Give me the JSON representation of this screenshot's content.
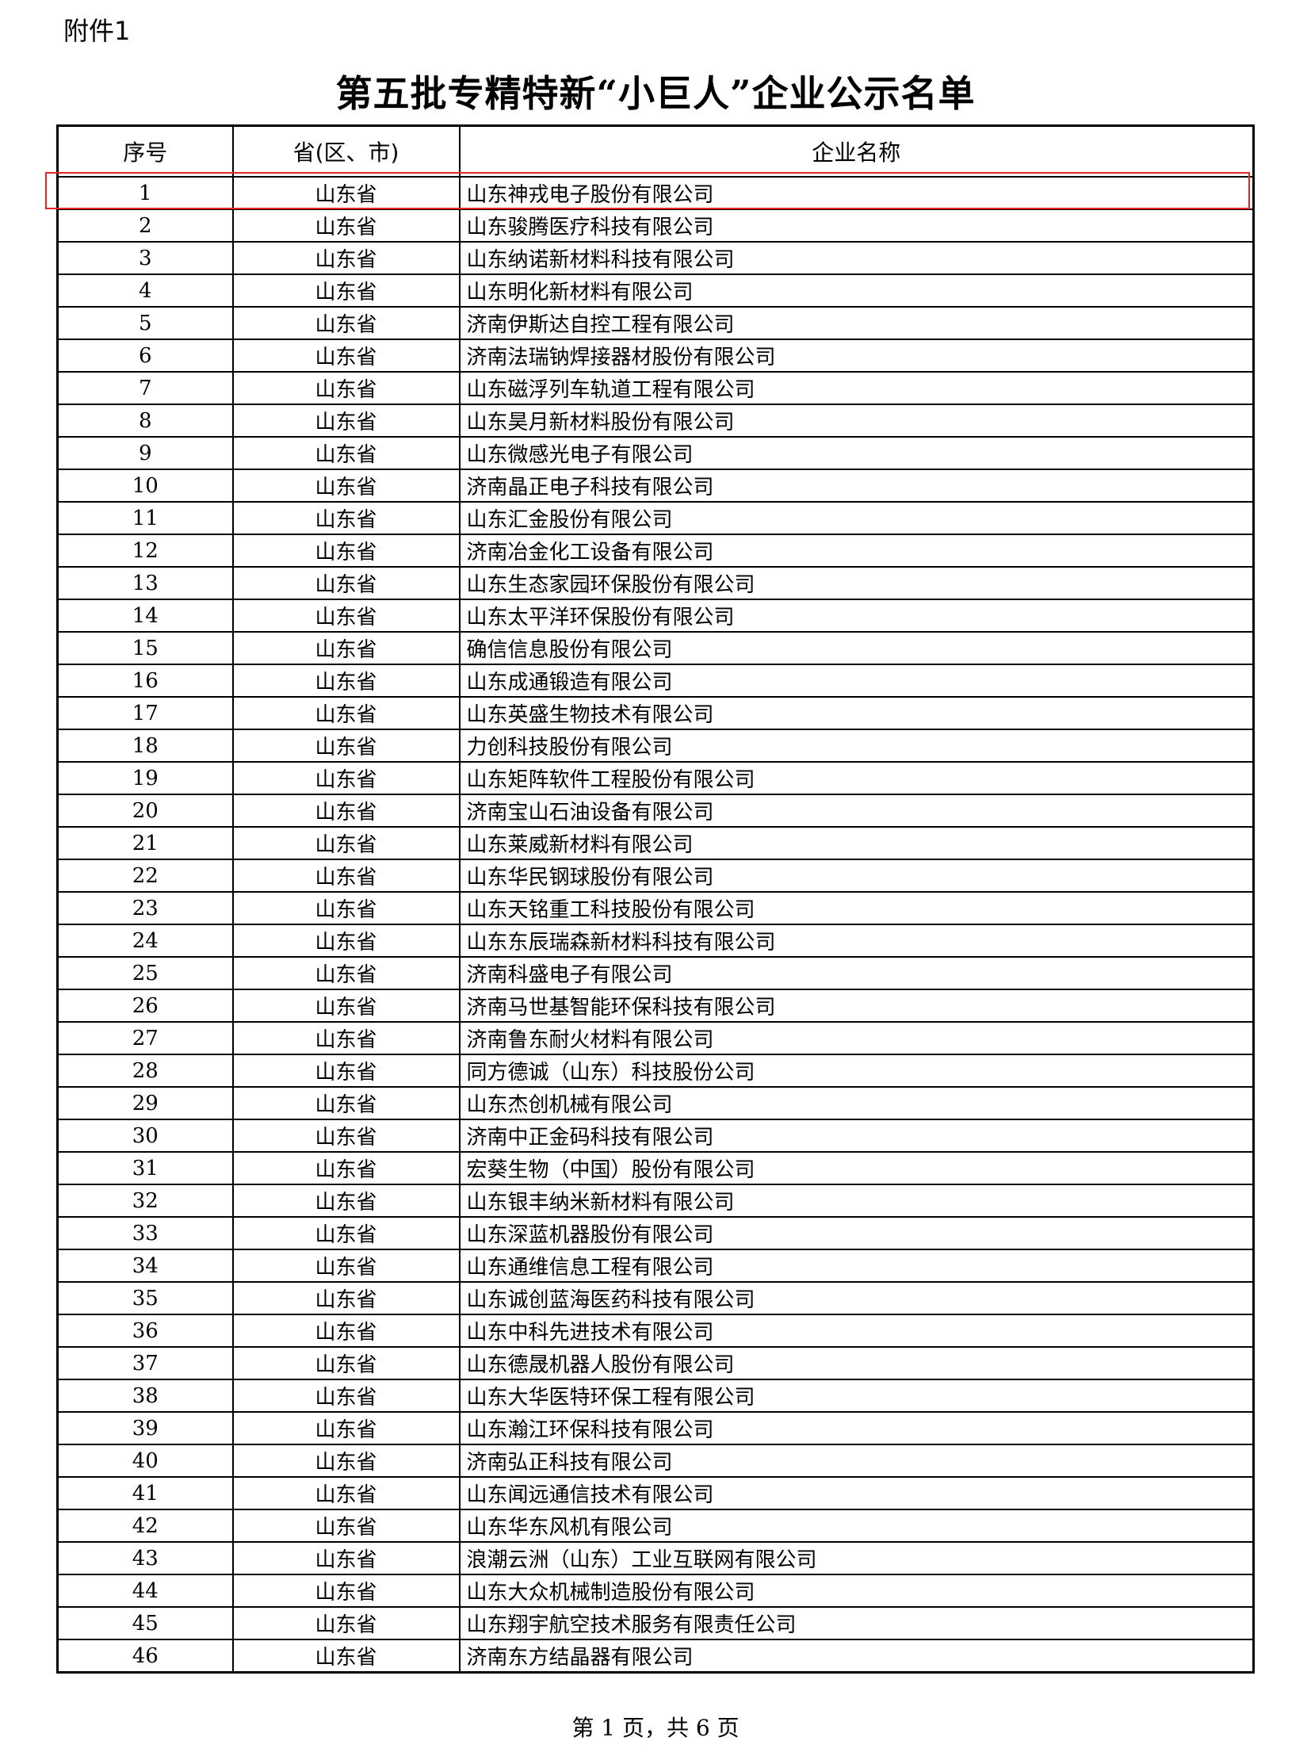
{
  "attachment_label": "附件1",
  "title": "第五批专精特新“小巨人”企业公示名单",
  "table": {
    "headers": [
      "序号",
      "省(区、市)",
      "企业名称"
    ],
    "rows": [
      [
        "1",
        "山东省",
        "山东神戎电子股份有限公司"
      ],
      [
        "2",
        "山东省",
        "山东骏腾医疗科技有限公司"
      ],
      [
        "3",
        "山东省",
        "山东纳诺新材料科技有限公司"
      ],
      [
        "4",
        "山东省",
        "山东明化新材料有限公司"
      ],
      [
        "5",
        "山东省",
        "济南伊斯达自控工程有限公司"
      ],
      [
        "6",
        "山东省",
        "济南法瑞钠焊接器材股份有限公司"
      ],
      [
        "7",
        "山东省",
        "山东磁浮列车轨道工程有限公司"
      ],
      [
        "8",
        "山东省",
        "山东昊月新材料股份有限公司"
      ],
      [
        "9",
        "山东省",
        "山东微感光电子有限公司"
      ],
      [
        "10",
        "山东省",
        "济南晶正电子科技有限公司"
      ],
      [
        "11",
        "山东省",
        "山东汇金股份有限公司"
      ],
      [
        "12",
        "山东省",
        "济南冶金化工设备有限公司"
      ],
      [
        "13",
        "山东省",
        "山东生态家园环保股份有限公司"
      ],
      [
        "14",
        "山东省",
        "山东太平洋环保股份有限公司"
      ],
      [
        "15",
        "山东省",
        "确信信息股份有限公司"
      ],
      [
        "16",
        "山东省",
        "山东成通锻造有限公司"
      ],
      [
        "17",
        "山东省",
        "山东英盛生物技术有限公司"
      ],
      [
        "18",
        "山东省",
        "力创科技股份有限公司"
      ],
      [
        "19",
        "山东省",
        "山东矩阵软件工程股份有限公司"
      ],
      [
        "20",
        "山东省",
        "济南宝山石油设备有限公司"
      ],
      [
        "21",
        "山东省",
        "山东莱威新材料有限公司"
      ],
      [
        "22",
        "山东省",
        "山东华民钢球股份有限公司"
      ],
      [
        "23",
        "山东省",
        "山东天铭重工科技股份有限公司"
      ],
      [
        "24",
        "山东省",
        "山东东辰瑞森新材料科技有限公司"
      ],
      [
        "25",
        "山东省",
        "济南科盛电子有限公司"
      ],
      [
        "26",
        "山东省",
        "济南马世基智能环保科技有限公司"
      ],
      [
        "27",
        "山东省",
        "济南鲁东耐火材料有限公司"
      ],
      [
        "28",
        "山东省",
        "同方德诚（山东）科技股份公司"
      ],
      [
        "29",
        "山东省",
        "山东杰创机械有限公司"
      ],
      [
        "30",
        "山东省",
        "济南中正金码科技有限公司"
      ],
      [
        "31",
        "山东省",
        "宏葵生物（中国）股份有限公司"
      ],
      [
        "32",
        "山东省",
        "山东银丰纳米新材料有限公司"
      ],
      [
        "33",
        "山东省",
        "山东深蓝机器股份有限公司"
      ],
      [
        "34",
        "山东省",
        "山东通维信息工程有限公司"
      ],
      [
        "35",
        "山东省",
        "山东诚创蓝海医药科技有限公司"
      ],
      [
        "36",
        "山东省",
        "山东中科先进技术有限公司"
      ],
      [
        "37",
        "山东省",
        "山东德晟机器人股份有限公司"
      ],
      [
        "38",
        "山东省",
        "山东大华医特环保工程有限公司"
      ],
      [
        "39",
        "山东省",
        "山东瀚江环保科技有限公司"
      ],
      [
        "40",
        "山东省",
        "济南弘正科技有限公司"
      ],
      [
        "41",
        "山东省",
        "山东闻远通信技术有限公司"
      ],
      [
        "42",
        "山东省",
        "山东华东风机有限公司"
      ],
      [
        "43",
        "山东省",
        "浪潮云洲（山东）工业互联网有限公司"
      ],
      [
        "44",
        "山东省",
        "山东大众机械制造股份有限公司"
      ],
      [
        "45",
        "山东省",
        "山东翔宇航空技术服务有限责任公司"
      ],
      [
        "46",
        "山东省",
        "济南东方结晶器有限公司"
      ]
    ],
    "highlighted_row": 1,
    "highlight_color": "#e8261f"
  },
  "footer": "第 1 页，共 6 页"
}
